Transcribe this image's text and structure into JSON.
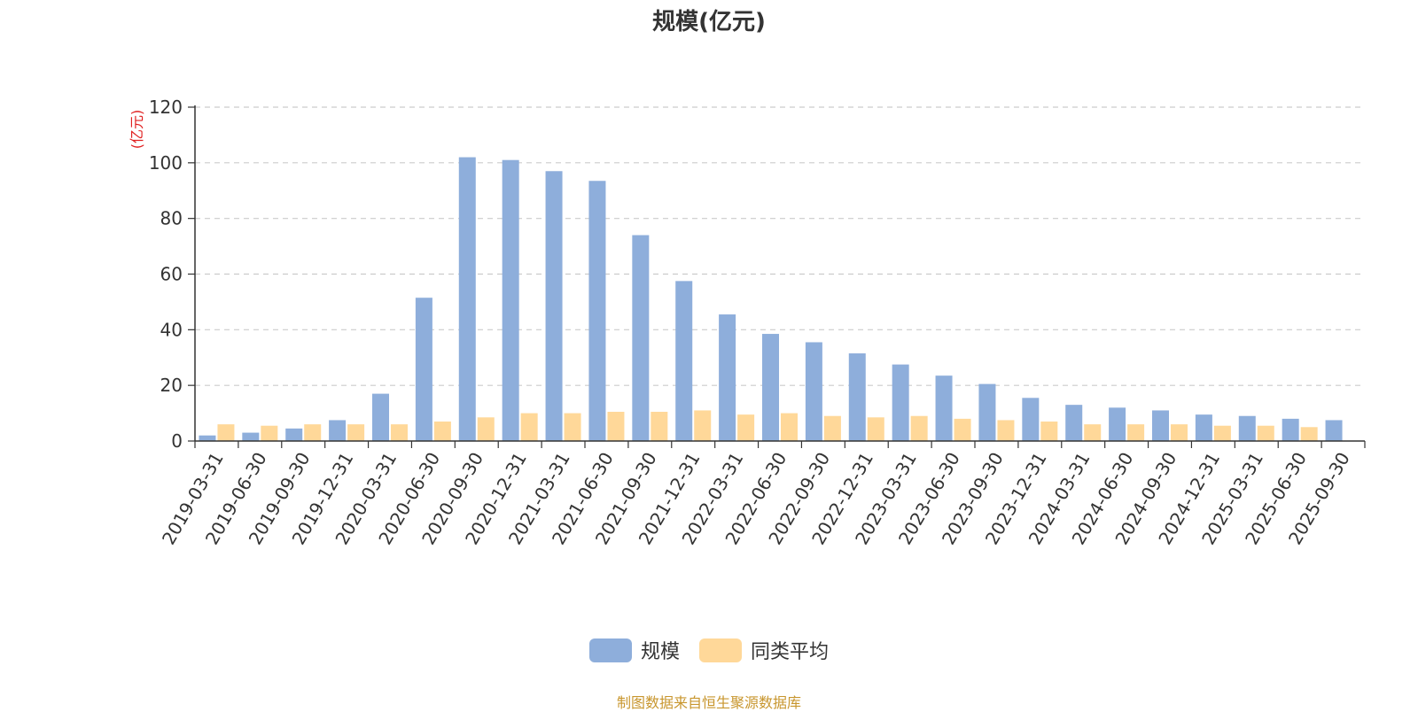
{
  "chart_data": {
    "type": "bar",
    "title": "规模(亿元)",
    "ylabel": "(亿元)",
    "xlabel": "",
    "ylim": [
      0,
      120
    ],
    "yticks": [
      0,
      20,
      40,
      60,
      80,
      100,
      120
    ],
    "grid": true,
    "legend_position": "bottom",
    "categories": [
      "2019-03-31",
      "2019-06-30",
      "2019-09-30",
      "2019-12-31",
      "2020-03-31",
      "2020-06-30",
      "2020-09-30",
      "2020-12-31",
      "2021-03-31",
      "2021-06-30",
      "2021-09-30",
      "2021-12-31",
      "2022-03-31",
      "2022-06-30",
      "2022-09-30",
      "2022-12-31",
      "2023-03-31",
      "2023-06-30",
      "2023-09-30",
      "2023-12-31",
      "2024-03-31",
      "2024-06-30",
      "2024-09-30",
      "2024-12-31",
      "2025-03-31",
      "2025-06-30",
      "2025-09-30"
    ],
    "series": [
      {
        "name": "规模",
        "color": "#8eaedb",
        "values": [
          2,
          3,
          4.5,
          7.5,
          17,
          51.5,
          102,
          101,
          97,
          93.5,
          74,
          57.5,
          45.5,
          38.5,
          35.5,
          31.5,
          27.5,
          23.5,
          20.5,
          15.5,
          13,
          12,
          11,
          9.5,
          9,
          8,
          7.5
        ]
      },
      {
        "name": "同类平均",
        "color": "#ffd899",
        "values": [
          6,
          5.5,
          6,
          6,
          6,
          7,
          8.5,
          10,
          10,
          10.5,
          10.5,
          11,
          9.5,
          10,
          9,
          8.5,
          9,
          8,
          7.5,
          7,
          6,
          6,
          6,
          5.5,
          5.5,
          5,
          null
        ]
      }
    ]
  },
  "source_note": "制图数据来自恒生聚源数据库"
}
